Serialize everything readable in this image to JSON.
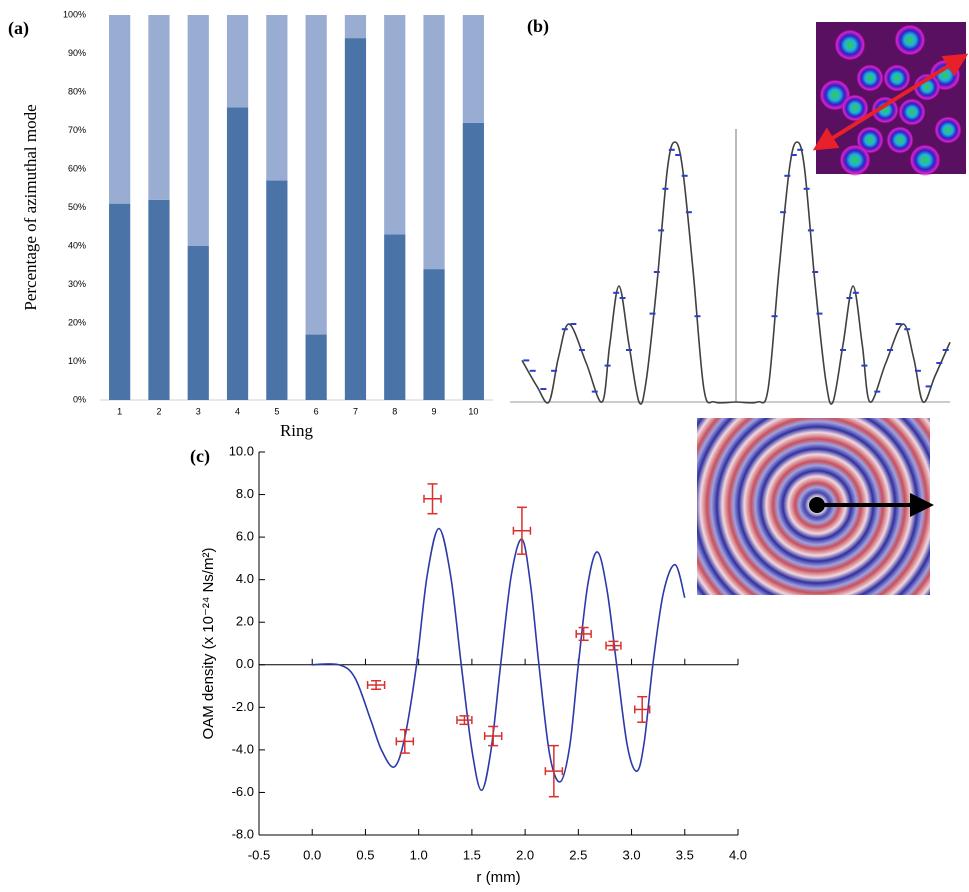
{
  "chart_data": [
    {
      "type": "bar",
      "stacked": true,
      "panel_label": "(a)",
      "ylabel": "Percentage of azimuthal mode",
      "xlabel": "Ring",
      "categories": [
        "1",
        "2",
        "3",
        "4",
        "5",
        "6",
        "7",
        "8",
        "9",
        "10"
      ],
      "series": [
        {
          "color": "#4a74a8",
          "values": [
            51,
            52,
            40,
            76,
            57,
            17,
            94,
            43,
            34,
            72
          ]
        },
        {
          "color": "#99add3",
          "values": [
            49,
            48,
            60,
            24,
            43,
            83,
            6,
            57,
            66,
            28
          ]
        }
      ],
      "ylim": [
        0,
        100
      ],
      "yticks": [
        {
          "value": 0,
          "label": "0%"
        },
        {
          "value": 10,
          "label": "10%"
        },
        {
          "value": 20,
          "label": "20%"
        },
        {
          "value": 30,
          "label": "30%"
        },
        {
          "value": 40,
          "label": "40%"
        },
        {
          "value": 50,
          "label": "50%"
        },
        {
          "value": 60,
          "label": "60%"
        },
        {
          "value": 70,
          "label": "70%"
        },
        {
          "value": 80,
          "label": "80%"
        },
        {
          "value": 90,
          "label": "90%"
        },
        {
          "value": 100,
          "label": "100%"
        }
      ]
    },
    {
      "type": "line",
      "panel_label": "(b)",
      "xlim": [
        -1,
        1
      ],
      "ylim": [
        0,
        1.05
      ],
      "series": [
        {
          "type": "line",
          "color": "#404040",
          "x": [
            -1.0,
            -0.93,
            -0.874,
            -0.83,
            -0.78,
            -0.7,
            -0.626,
            -0.59,
            -0.547,
            -0.5,
            -0.453,
            -0.42,
            -0.37,
            -0.32,
            -0.285,
            -0.25,
            -0.2,
            -0.15,
            -0.1,
            0,
            0.1,
            0.15,
            0.2,
            0.25,
            0.285,
            0.32,
            0.37,
            0.42,
            0.453,
            0.5,
            0.547,
            0.59,
            0.626,
            0.7,
            0.78,
            0.83,
            0.874,
            0.93,
            1.0
          ],
          "values": [
            0.16,
            0.06,
            0,
            0.17,
            0.3,
            0.15,
            0,
            0.22,
            0.446,
            0.22,
            0,
            0.08,
            0.45,
            0.9,
            1.0,
            0.9,
            0.5,
            0.05,
            0,
            0,
            0,
            0.05,
            0.5,
            0.9,
            1.0,
            0.9,
            0.45,
            0.08,
            0,
            0.22,
            0.446,
            0.22,
            0,
            0.15,
            0.3,
            0.17,
            0,
            0.1,
            0.23
          ]
        },
        {
          "type": "scatter",
          "color": "#2a3fc8",
          "x": [
            -0.98,
            -0.95,
            -0.9,
            -0.85,
            -0.8,
            -0.76,
            -0.72,
            -0.66,
            -0.6,
            -0.56,
            -0.53,
            -0.5,
            -0.39,
            -0.37,
            -0.35,
            -0.33,
            -0.3,
            -0.27,
            -0.24,
            -0.22,
            -0.18,
            0.18,
            0.22,
            0.24,
            0.27,
            0.3,
            0.33,
            0.35,
            0.37,
            0.39,
            0.5,
            0.53,
            0.56,
            0.6,
            0.66,
            0.72,
            0.76,
            0.8,
            0.85,
            0.9,
            0.95,
            0.98
          ],
          "values": [
            0.16,
            0.12,
            0.05,
            0.12,
            0.28,
            0.3,
            0.2,
            0.04,
            0.14,
            0.42,
            0.4,
            0.2,
            0.34,
            0.5,
            0.66,
            0.82,
            0.97,
            0.95,
            0.87,
            0.73,
            0.33,
            0.33,
            0.73,
            0.87,
            0.95,
            0.97,
            0.82,
            0.66,
            0.5,
            0.34,
            0.2,
            0.4,
            0.42,
            0.14,
            0.04,
            0.2,
            0.3,
            0.28,
            0.12,
            0.06,
            0.15,
            0.2
          ]
        }
      ]
    },
    {
      "type": "line",
      "panel_label": "(c)",
      "xlabel": "r (mm)",
      "ylabel": "OAM density (x 10⁻²⁴ Ns/m²)",
      "xlim": [
        -0.5,
        4.0
      ],
      "ylim": [
        -8,
        10
      ],
      "xticks": [
        {
          "value": -0.5,
          "label": "-0.5"
        },
        {
          "value": 0,
          "label": "0.0"
        },
        {
          "value": 0.5,
          "label": "0.5"
        },
        {
          "value": 1,
          "label": "1.0"
        },
        {
          "value": 1.5,
          "label": "1.5"
        },
        {
          "value": 2,
          "label": "2.0"
        },
        {
          "value": 2.5,
          "label": "2.5"
        },
        {
          "value": 3,
          "label": "3.0"
        },
        {
          "value": 3.5,
          "label": "3.5"
        },
        {
          "value": 4,
          "label": "4.0"
        }
      ],
      "yticks": [
        {
          "value": -8,
          "label": "-8.0"
        },
        {
          "value": -6,
          "label": "-6.0"
        },
        {
          "value": -4,
          "label": "-4.0"
        },
        {
          "value": -2,
          "label": "-2.0"
        },
        {
          "value": 0,
          "label": "0.0"
        },
        {
          "value": 2,
          "label": "2.0"
        },
        {
          "value": 4,
          "label": "4.0"
        },
        {
          "value": 6,
          "label": "6.0"
        },
        {
          "value": 8,
          "label": "8.0"
        },
        {
          "value": 10,
          "label": "10.0"
        }
      ],
      "series": [
        {
          "type": "line",
          "color": "#2b3aa8",
          "x": [
            0,
            0.25,
            0.4,
            0.55,
            0.65,
            0.77,
            0.87,
            0.98,
            1.08,
            1.19,
            1.3,
            1.4,
            1.5,
            1.59,
            1.68,
            1.77,
            1.87,
            1.97,
            2.05,
            2.13,
            2.23,
            2.33,
            2.42,
            2.5,
            2.59,
            2.68,
            2.77,
            2.86,
            2.96,
            3.05,
            3.12,
            3.2,
            3.3,
            3.41,
            3.5
          ],
          "values": [
            0,
            0,
            -0.6,
            -2.6,
            -4.0,
            -4.8,
            -3.4,
            0,
            4.2,
            6.4,
            4.2,
            0,
            -4.0,
            -5.9,
            -4.0,
            0,
            4.2,
            5.9,
            3.8,
            0,
            -4.2,
            -5.5,
            -3.8,
            0,
            3.8,
            5.3,
            3.5,
            0,
            -3.8,
            -5.0,
            -3.6,
            0,
            3.4,
            4.7,
            3.15
          ]
        },
        {
          "type": "scatter",
          "color": "#d9302c",
          "x": [
            0.6,
            0.87,
            1.13,
            1.43,
            1.7,
            1.97,
            2.27,
            2.55,
            2.83,
            3.1
          ],
          "values": [
            -0.95,
            -3.6,
            7.8,
            -2.6,
            -3.35,
            6.3,
            -5.0,
            1.45,
            0.9,
            -2.1
          ],
          "xerr": [
            0.08,
            0.08,
            0.08,
            0.07,
            0.08,
            0.08,
            0.08,
            0.07,
            0.07,
            0.07
          ],
          "yerr": [
            0.2,
            0.55,
            0.7,
            0.2,
            0.45,
            1.1,
            1.2,
            0.3,
            0.2,
            0.6
          ]
        }
      ]
    }
  ]
}
